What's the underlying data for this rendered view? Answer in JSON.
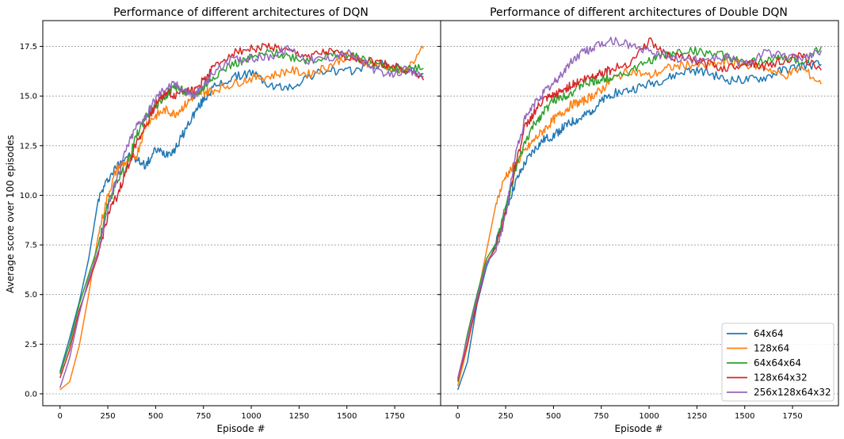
{
  "chart_data": [
    {
      "type": "line",
      "title": "Performance of different architectures of DQN",
      "xlabel": "Episode #",
      "ylabel": "Average score over 100 episodes",
      "xlim": [
        -90,
        1990
      ],
      "ylim": [
        -0.6,
        18.8
      ],
      "xticks": [
        0,
        250,
        500,
        750,
        1000,
        1250,
        1500,
        1750
      ],
      "yticks": [
        0.0,
        2.5,
        5.0,
        7.5,
        10.0,
        12.5,
        15.0,
        17.5
      ],
      "grid": "y-dashed",
      "legend": "none",
      "series": [
        {
          "name": "64x64",
          "color": "#1f77b4",
          "x": [
            0,
            50,
            100,
            150,
            200,
            250,
            300,
            350,
            400,
            450,
            500,
            550,
            600,
            650,
            700,
            750,
            800,
            900,
            1000,
            1100,
            1200,
            1300,
            1400,
            1500,
            1600,
            1700,
            1800,
            1900
          ],
          "values": [
            1.1,
            2.8,
            4.6,
            6.8,
            9.8,
            10.8,
            11.5,
            12.0,
            11.8,
            11.5,
            12.3,
            12.1,
            12.3,
            13.2,
            14.1,
            14.8,
            15.4,
            15.9,
            16.2,
            15.5,
            15.4,
            16.0,
            16.3,
            16.2,
            16.5,
            16.6,
            16.3,
            16.1
          ]
        },
        {
          "name": "128x64",
          "color": "#ff7f0e",
          "x": [
            0,
            50,
            100,
            150,
            200,
            250,
            300,
            350,
            400,
            450,
            500,
            550,
            600,
            650,
            700,
            750,
            800,
            900,
            1000,
            1100,
            1200,
            1300,
            1400,
            1500,
            1600,
            1700,
            1800,
            1900
          ],
          "values": [
            0.2,
            0.6,
            2.4,
            5.0,
            8.0,
            10.0,
            11.4,
            11.7,
            12.0,
            13.6,
            14.0,
            14.3,
            14.1,
            14.5,
            15.0,
            15.2,
            15.3,
            15.6,
            15.9,
            16.0,
            16.3,
            16.1,
            16.5,
            17.0,
            16.7,
            16.5,
            16.2,
            17.4
          ]
        },
        {
          "name": "64x64x64",
          "color": "#2ca02c",
          "x": [
            0,
            50,
            100,
            150,
            200,
            250,
            300,
            350,
            400,
            450,
            500,
            550,
            600,
            650,
            700,
            750,
            800,
            900,
            1000,
            1100,
            1200,
            1300,
            1400,
            1500,
            1600,
            1700,
            1800,
            1900
          ],
          "values": [
            1.0,
            2.5,
            4.5,
            6.0,
            7.5,
            9.5,
            10.8,
            11.5,
            13.0,
            14.0,
            14.5,
            15.0,
            15.5,
            15.2,
            15.0,
            15.4,
            16.0,
            16.6,
            16.9,
            17.2,
            17.0,
            16.8,
            17.0,
            17.1,
            16.8,
            16.5,
            16.3,
            16.4
          ]
        },
        {
          "name": "128x64x32",
          "color": "#d62728",
          "x": [
            0,
            50,
            100,
            150,
            200,
            250,
            300,
            350,
            400,
            450,
            500,
            550,
            600,
            650,
            700,
            750,
            800,
            900,
            1000,
            1100,
            1200,
            1300,
            1400,
            1500,
            1600,
            1700,
            1800,
            1900
          ],
          "values": [
            0.8,
            2.2,
            4.2,
            5.6,
            7.0,
            9.0,
            10.0,
            11.3,
            12.7,
            13.5,
            14.6,
            15.2,
            15.0,
            15.4,
            15.2,
            15.8,
            16.4,
            17.2,
            17.4,
            17.5,
            17.2,
            17.0,
            17.2,
            17.0,
            16.8,
            16.6,
            16.4,
            15.8
          ]
        },
        {
          "name": "256x128x64x32",
          "color": "#9467bd",
          "x": [
            0,
            50,
            100,
            150,
            200,
            250,
            300,
            350,
            400,
            450,
            500,
            550,
            600,
            650,
            700,
            750,
            800,
            900,
            1000,
            1100,
            1200,
            1300,
            1400,
            1500,
            1600,
            1700,
            1800,
            1900
          ],
          "values": [
            0.3,
            1.8,
            4.0,
            5.8,
            7.2,
            9.4,
            11.0,
            12.4,
            13.5,
            14.0,
            14.9,
            15.4,
            15.6,
            15.3,
            15.0,
            15.5,
            16.2,
            16.8,
            16.9,
            17.0,
            17.4,
            16.8,
            16.9,
            17.2,
            16.6,
            16.0,
            16.3,
            16.0
          ]
        }
      ]
    },
    {
      "type": "line",
      "title": "Performance of different architectures of Double DQN",
      "xlabel": "Episode #",
      "ylabel": "",
      "xlim": [
        -90,
        1990
      ],
      "ylim": [
        -0.6,
        18.8
      ],
      "xticks": [
        0,
        250,
        500,
        750,
        1000,
        1250,
        1500,
        1750
      ],
      "yticks": [
        0.0,
        2.5,
        5.0,
        7.5,
        10.0,
        12.5,
        15.0,
        17.5
      ],
      "grid": "y-dashed",
      "legend": "lower right",
      "series": [
        {
          "name": "64x64",
          "color": "#1f77b4",
          "x": [
            0,
            50,
            100,
            150,
            200,
            250,
            300,
            350,
            400,
            450,
            500,
            550,
            600,
            650,
            700,
            750,
            800,
            900,
            1000,
            1100,
            1200,
            1300,
            1400,
            1500,
            1600,
            1700,
            1800,
            1900
          ],
          "values": [
            0.2,
            1.6,
            4.5,
            6.4,
            7.6,
            9.2,
            10.6,
            11.6,
            12.3,
            12.8,
            13.0,
            13.4,
            13.7,
            13.9,
            14.3,
            14.7,
            15.1,
            15.3,
            15.6,
            15.9,
            16.3,
            16.2,
            15.8,
            15.8,
            15.9,
            16.3,
            16.5,
            16.6
          ]
        },
        {
          "name": "128x64",
          "color": "#ff7f0e",
          "x": [
            0,
            50,
            100,
            150,
            200,
            250,
            300,
            350,
            400,
            450,
            500,
            550,
            600,
            650,
            700,
            750,
            800,
            900,
            1000,
            1100,
            1200,
            1300,
            1400,
            1500,
            1600,
            1700,
            1800,
            1900
          ],
          "values": [
            0.4,
            2.4,
            4.8,
            7.2,
            9.6,
            11.0,
            11.5,
            12.2,
            12.8,
            13.3,
            13.8,
            14.2,
            14.6,
            14.7,
            15.0,
            15.3,
            15.8,
            16.3,
            16.0,
            16.4,
            16.6,
            16.5,
            16.7,
            16.6,
            16.5,
            16.0,
            16.4,
            15.6
          ]
        },
        {
          "name": "64x64x64",
          "color": "#2ca02c",
          "x": [
            0,
            50,
            100,
            150,
            200,
            250,
            300,
            350,
            400,
            450,
            500,
            550,
            600,
            650,
            700,
            750,
            800,
            900,
            1000,
            1100,
            1200,
            1300,
            1400,
            1500,
            1600,
            1700,
            1800,
            1900
          ],
          "values": [
            0.6,
            3.0,
            5.0,
            6.8,
            7.6,
            9.4,
            11.2,
            12.6,
            13.6,
            14.2,
            14.8,
            15.0,
            15.2,
            15.6,
            15.7,
            15.8,
            16.0,
            16.2,
            16.8,
            17.1,
            17.3,
            17.2,
            17.0,
            16.6,
            16.8,
            16.9,
            16.7,
            17.5
          ]
        },
        {
          "name": "128x64x32",
          "color": "#d62728",
          "x": [
            0,
            50,
            100,
            150,
            200,
            250,
            300,
            350,
            400,
            450,
            500,
            550,
            600,
            650,
            700,
            750,
            800,
            900,
            1000,
            1100,
            1200,
            1300,
            1400,
            1500,
            1600,
            1700,
            1800,
            1900
          ],
          "values": [
            0.7,
            2.5,
            4.6,
            6.6,
            7.4,
            9.2,
            11.5,
            13.4,
            14.2,
            14.8,
            15.0,
            15.3,
            15.6,
            15.8,
            16.0,
            16.2,
            16.3,
            16.7,
            17.8,
            17.0,
            16.9,
            16.6,
            16.4,
            16.7,
            16.5,
            16.8,
            17.0,
            16.3
          ]
        },
        {
          "name": "256x128x64x32",
          "color": "#9467bd",
          "x": [
            0,
            50,
            100,
            150,
            200,
            250,
            300,
            350,
            400,
            450,
            500,
            550,
            600,
            650,
            700,
            750,
            800,
            900,
            1000,
            1100,
            1200,
            1300,
            1400,
            1500,
            1600,
            1700,
            1800,
            1900
          ],
          "values": [
            0.8,
            2.8,
            4.8,
            6.6,
            7.2,
            9.0,
            12.0,
            13.8,
            14.6,
            15.2,
            15.6,
            16.2,
            16.8,
            17.2,
            17.4,
            17.6,
            17.8,
            17.6,
            17.2,
            17.0,
            16.8,
            16.9,
            17.0,
            16.6,
            17.2,
            17.0,
            16.9,
            17.3
          ]
        }
      ],
      "legend_labels": [
        "64x64",
        "128x64",
        "64x64x64",
        "128x64x32",
        "256x128x64x32"
      ]
    }
  ]
}
